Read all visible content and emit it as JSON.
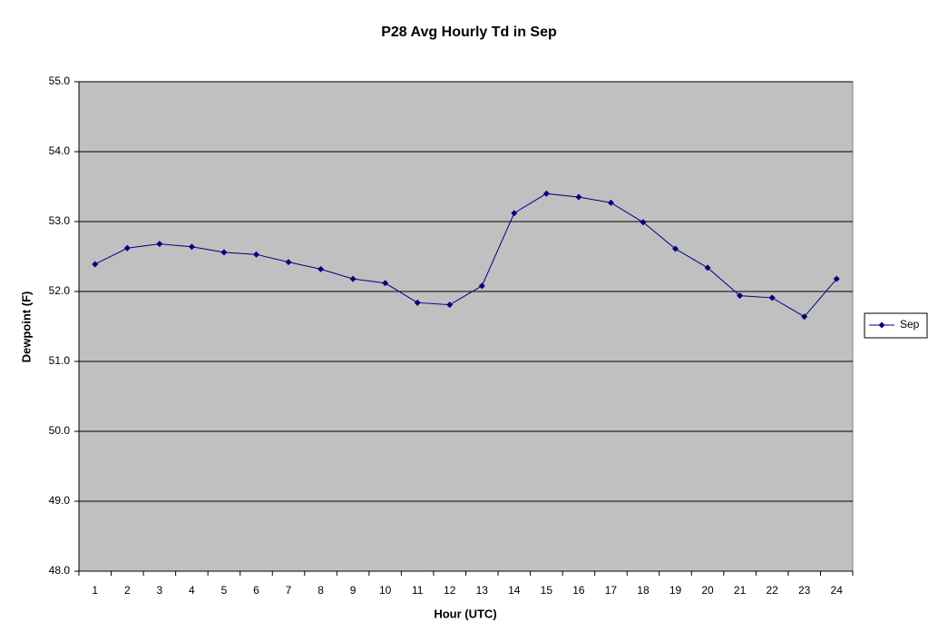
{
  "chart_data": {
    "type": "line",
    "title": "P28 Avg Hourly Td in Sep",
    "x_label": "Hour (UTC)",
    "y_label": "Dewpoint (F)",
    "categories": [
      "1",
      "2",
      "3",
      "4",
      "5",
      "6",
      "7",
      "8",
      "9",
      "10",
      "11",
      "12",
      "13",
      "14",
      "15",
      "16",
      "17",
      "18",
      "19",
      "20",
      "21",
      "22",
      "23",
      "24"
    ],
    "series": [
      {
        "name": "Sep",
        "color": "#000080",
        "values": [
          52.39,
          52.62,
          52.68,
          52.64,
          52.56,
          52.53,
          52.42,
          52.32,
          52.18,
          52.12,
          51.84,
          51.81,
          52.08,
          53.12,
          53.4,
          53.35,
          53.27,
          52.99,
          52.61,
          52.34,
          51.94,
          51.91,
          51.64,
          52.18
        ]
      }
    ],
    "ylim": [
      48,
      55
    ],
    "yticks": [
      {
        "value": 48,
        "label": "48.0"
      },
      {
        "value": 49,
        "label": "49.0"
      },
      {
        "value": 50,
        "label": "50.0"
      },
      {
        "value": 51,
        "label": "51.0"
      },
      {
        "value": 52,
        "label": "52.0"
      },
      {
        "value": 53,
        "label": "53.0"
      },
      {
        "value": 54,
        "label": "54.0"
      },
      {
        "value": 55,
        "label": "55.0"
      }
    ],
    "grid": true,
    "legend": "right"
  }
}
